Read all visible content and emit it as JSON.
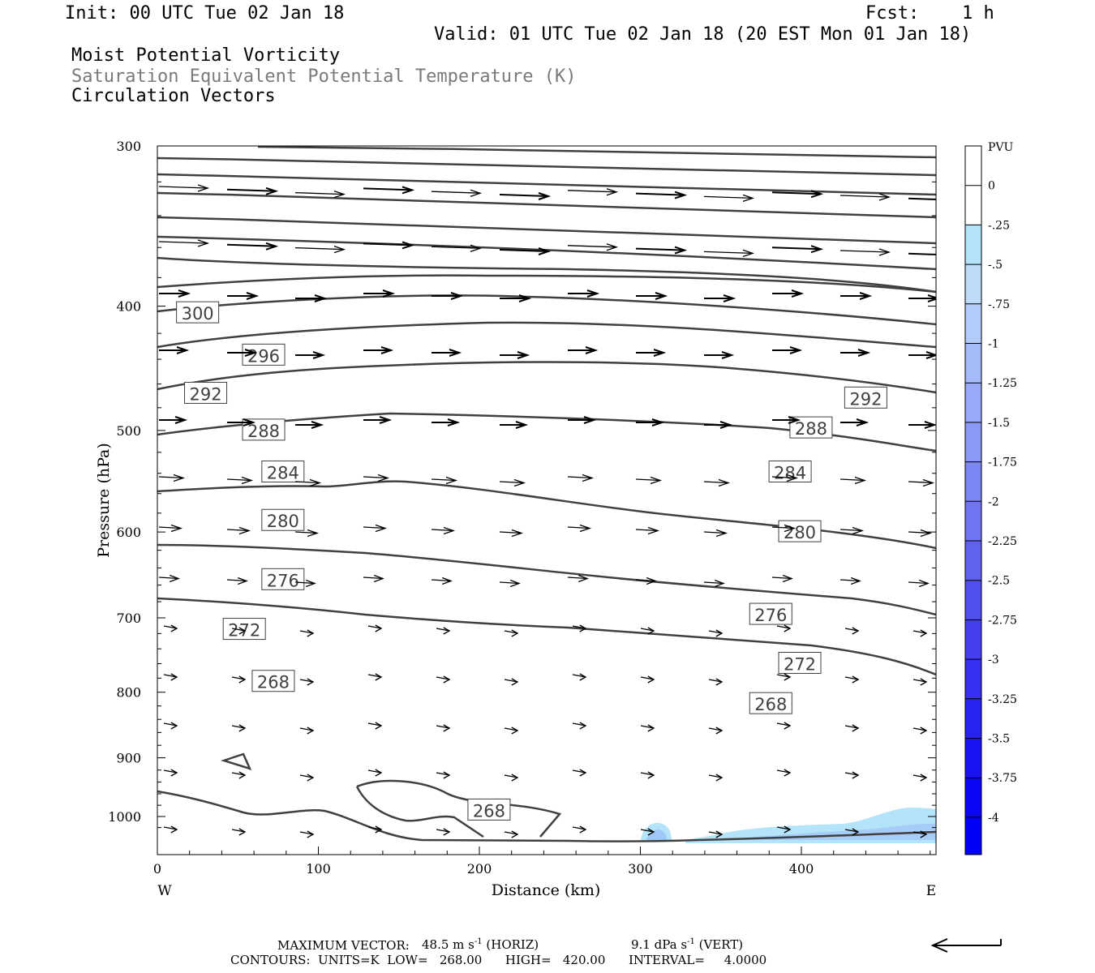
{
  "header": {
    "init": "Init: 00 UTC Tue 02 Jan 18",
    "fcst_label": "Fcst:",
    "fcst_value": "1 h",
    "valid": "Valid: 01 UTC Tue 02 Jan 18 (20 EST Mon 01 Jan 18)",
    "field1": "Moist Potential Vorticity",
    "field2": "Saturation Equivalent Potential Temperature (K)",
    "field3": "Circulation Vectors"
  },
  "chart_data": {
    "type": "cross-section",
    "xlabel": "Distance (km)",
    "ylabel": "Pressure (hPa)",
    "xlim": [
      0,
      485
    ],
    "ylim": [
      1040,
      300
    ],
    "y_scale": "log-pressure (inverted)",
    "x_ticks": [
      0,
      100,
      200,
      300,
      400
    ],
    "y_ticks": [
      300,
      400,
      500,
      600,
      700,
      800,
      900,
      1000
    ],
    "left_end_label": "W",
    "right_end_label": "E",
    "colorbar": {
      "title": "PVU",
      "labels": [
        "0",
        "-.25",
        "-.5",
        "-.75",
        "-1",
        "-1.25",
        "-1.5",
        "-1.75",
        "-2",
        "-2.25",
        "-2.5",
        "-2.75",
        "-3",
        "-3.25",
        "-3.5",
        "-3.75",
        "-4"
      ],
      "colors": [
        "#ffffff",
        "#ffffff",
        "#b4e4fa",
        "#bedcfa",
        "#b2cdfa",
        "#a6bcfa",
        "#98aaf8",
        "#8a98f6",
        "#7c86f4",
        "#6e74f2",
        "#6062f0",
        "#5250ee",
        "#443ef0",
        "#3630f0",
        "#2822f2",
        "#1a14f4",
        "#0c06f6",
        "#0000f8"
      ],
      "color_meaning": "white = positive PV (>0), blues = increasingly negative PV"
    },
    "theta_es_contours": {
      "units": "K",
      "interval": 4,
      "labeled": [
        {
          "value": 300,
          "label": "300",
          "x": 25,
          "p": 405
        },
        {
          "value": 296,
          "label": "296",
          "x": 66,
          "p": 437
        },
        {
          "value": 292,
          "label": "292",
          "x": 30,
          "p": 468
        },
        {
          "value": 292,
          "label": "292",
          "x": 440,
          "p": 472
        },
        {
          "value": 288,
          "label": "288",
          "x": 66,
          "p": 500
        },
        {
          "value": 288,
          "label": "288",
          "x": 406,
          "p": 498
        },
        {
          "value": 284,
          "label": "284",
          "x": 78,
          "p": 539
        },
        {
          "value": 284,
          "label": "284",
          "x": 393,
          "p": 539
        },
        {
          "value": 280,
          "label": "280",
          "x": 78,
          "p": 588
        },
        {
          "value": 280,
          "label": "280",
          "x": 399,
          "p": 600
        },
        {
          "value": 276,
          "label": "276",
          "x": 78,
          "p": 654
        },
        {
          "value": 276,
          "label": "276",
          "x": 381,
          "p": 696
        },
        {
          "value": 272,
          "label": "272",
          "x": 54,
          "p": 715
        },
        {
          "value": 272,
          "label": "272",
          "x": 399,
          "p": 760
        },
        {
          "value": 268,
          "label": "268",
          "x": 72,
          "p": 785
        },
        {
          "value": 268,
          "label": "268",
          "x": 381,
          "p": 817
        },
        {
          "value": 268,
          "label": "268",
          "x": 206,
          "p": 989
        }
      ]
    },
    "pv_shading": "small negative PV (-0.25 to -0.75 PVU) near surface at ~300-320 km and 350-485 km",
    "footer": {
      "max_vector_label": "MAXIMUM VECTOR:",
      "max_horiz_value": "48.5 m s",
      "max_horiz_exp": "-1",
      "max_horiz_tag": "(HORIZ)",
      "max_vert_value": "9.1 dPa s",
      "max_vert_exp": "-1",
      "max_vert_tag": "(VERT)",
      "contours_line": "CONTOURS:  UNITS=K  LOW=   268.00      HIGH=   420.00      INTERVAL=     4.0000"
    }
  }
}
